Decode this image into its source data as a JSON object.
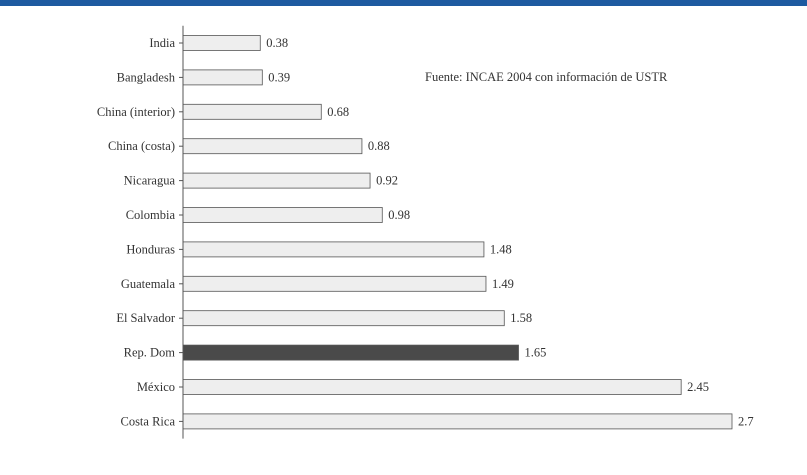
{
  "source_note": "Fuente: INCAE 2004 con información de USTR",
  "colors": {
    "bar_fill": "#eeeeee",
    "bar_stroke": "#555555",
    "highlight_fill": "#4a4a4a",
    "top_band": "#1e5aa0"
  },
  "chart_data": {
    "type": "bar",
    "orientation": "horizontal",
    "categories": [
      "India",
      "Bangladesh",
      "China (interior)",
      "China (costa)",
      "Nicaragua",
      "Colombia",
      "Honduras",
      "Guatemala",
      "El Salvador",
      "Rep. Dom",
      "México",
      "Costa Rica"
    ],
    "values": [
      0.38,
      0.39,
      0.68,
      0.88,
      0.92,
      0.98,
      1.48,
      1.49,
      1.58,
      1.65,
      2.45,
      2.7
    ],
    "value_labels": [
      "0.38",
      "0.39",
      "0.68",
      "0.88",
      "0.92",
      "0.98",
      "1.48",
      "1.49",
      "1.58",
      "1.65",
      "2.45",
      "2.7"
    ],
    "highlight": "Rep. Dom",
    "title": "",
    "xlabel": "",
    "ylabel": "",
    "xlim": [
      0,
      2.7
    ],
    "grid": false,
    "legend": "none"
  }
}
